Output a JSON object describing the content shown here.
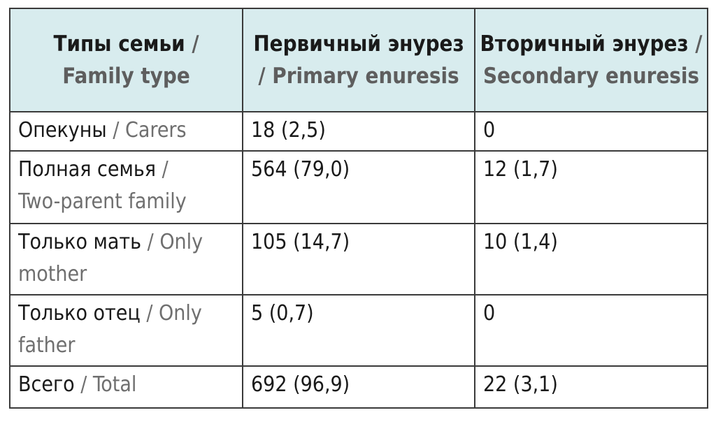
{
  "table": {
    "headers": [
      {
        "ru": "Типы семьи",
        "sep": " / ",
        "en": "Family type"
      },
      {
        "ru": "Первичный энурез",
        "sep": " / ",
        "en": "Primary enuresis"
      },
      {
        "ru": "Вторичный энурез",
        "sep": " / ",
        "en": "Secondary enuresis"
      }
    ],
    "rows": [
      {
        "ru": "Опекуны",
        "sep": " / ",
        "en": "Carers",
        "primary": "18 (2,5)",
        "secondary": "0"
      },
      {
        "ru": "Полная семья",
        "sep": " / ",
        "en": "Two-parent family",
        "primary": "564 (79,0)",
        "secondary": "12 (1,7)"
      },
      {
        "ru": "Только мать",
        "sep": " / ",
        "en": "Only mother",
        "primary": "105 (14,7)",
        "secondary": "10 (1,4)"
      },
      {
        "ru": "Только отец",
        "sep": " / ",
        "en": "Only father",
        "primary": "5 (0,7)",
        "secondary": "0"
      },
      {
        "ru": "Всего",
        "sep": " / ",
        "en": "Total",
        "primary": "692 (96,9)",
        "secondary": "22 (3,1)"
      }
    ]
  },
  "colors": {
    "header_background": "#d8ecee",
    "border": "#3a3a3a",
    "english_text": "#6b6b6b"
  }
}
